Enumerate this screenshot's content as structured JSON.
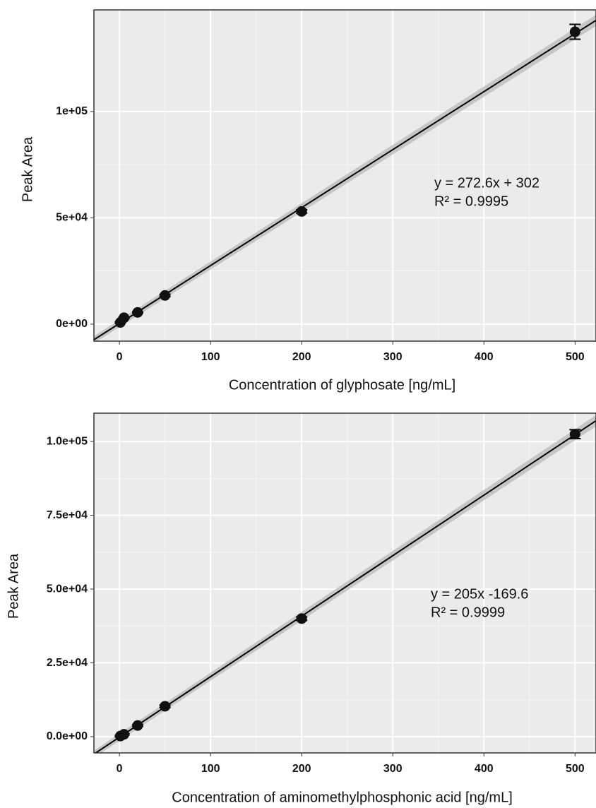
{
  "chart_data": [
    {
      "type": "scatter",
      "x_label": "Concentration of glyphosate [ng/mL]",
      "y_label": "Peak Area",
      "x": [
        1,
        5,
        20,
        50,
        200,
        500
      ],
      "values": [
        800,
        3000,
        5500,
        13500,
        53000,
        137500
      ],
      "errors": [
        300,
        300,
        300,
        500,
        800,
        3500
      ],
      "fit": {
        "slope": 272.6,
        "intercept": 302
      },
      "annotations": [
        "y = 272.6x + 302",
        "R² = 0.9995"
      ],
      "color": "#111111",
      "grid": true,
      "xlim": [
        -28,
        523
      ],
      "xticks": [
        0,
        100,
        200,
        300,
        400,
        500
      ],
      "ylim": [
        -8000,
        147800
      ],
      "yticks": [
        {
          "value": 0,
          "label": "0e+00"
        },
        {
          "value": 50000,
          "label": "5e+04"
        },
        {
          "value": 100000,
          "label": "1e+05"
        }
      ]
    },
    {
      "type": "scatter",
      "x_label": "Concentration of aminomethylphosphonic acid [ng/mL]",
      "y_label": "Peak Area",
      "x": [
        1,
        5,
        20,
        50,
        200,
        500
      ],
      "values": [
        200,
        800,
        3800,
        10300,
        40000,
        102500
      ],
      "errors": [
        200,
        200,
        300,
        400,
        600,
        1500
      ],
      "fit": {
        "slope": 205,
        "intercept": -169.6
      },
      "annotations": [
        "y = 205x -169.6",
        "R² = 0.9999"
      ],
      "color": "#111111",
      "grid": true,
      "xlim": [
        -28,
        523
      ],
      "xticks": [
        0,
        100,
        200,
        300,
        400,
        500
      ],
      "ylim": [
        -5500,
        109600
      ],
      "yticks": [
        {
          "value": 0,
          "label": "0.0e+00"
        },
        {
          "value": 25000,
          "label": "2.5e+04"
        },
        {
          "value": 50000,
          "label": "5.0e+04"
        },
        {
          "value": 75000,
          "label": "7.5e+04"
        },
        {
          "value": 100000,
          "label": "1.0e+05"
        }
      ]
    }
  ]
}
